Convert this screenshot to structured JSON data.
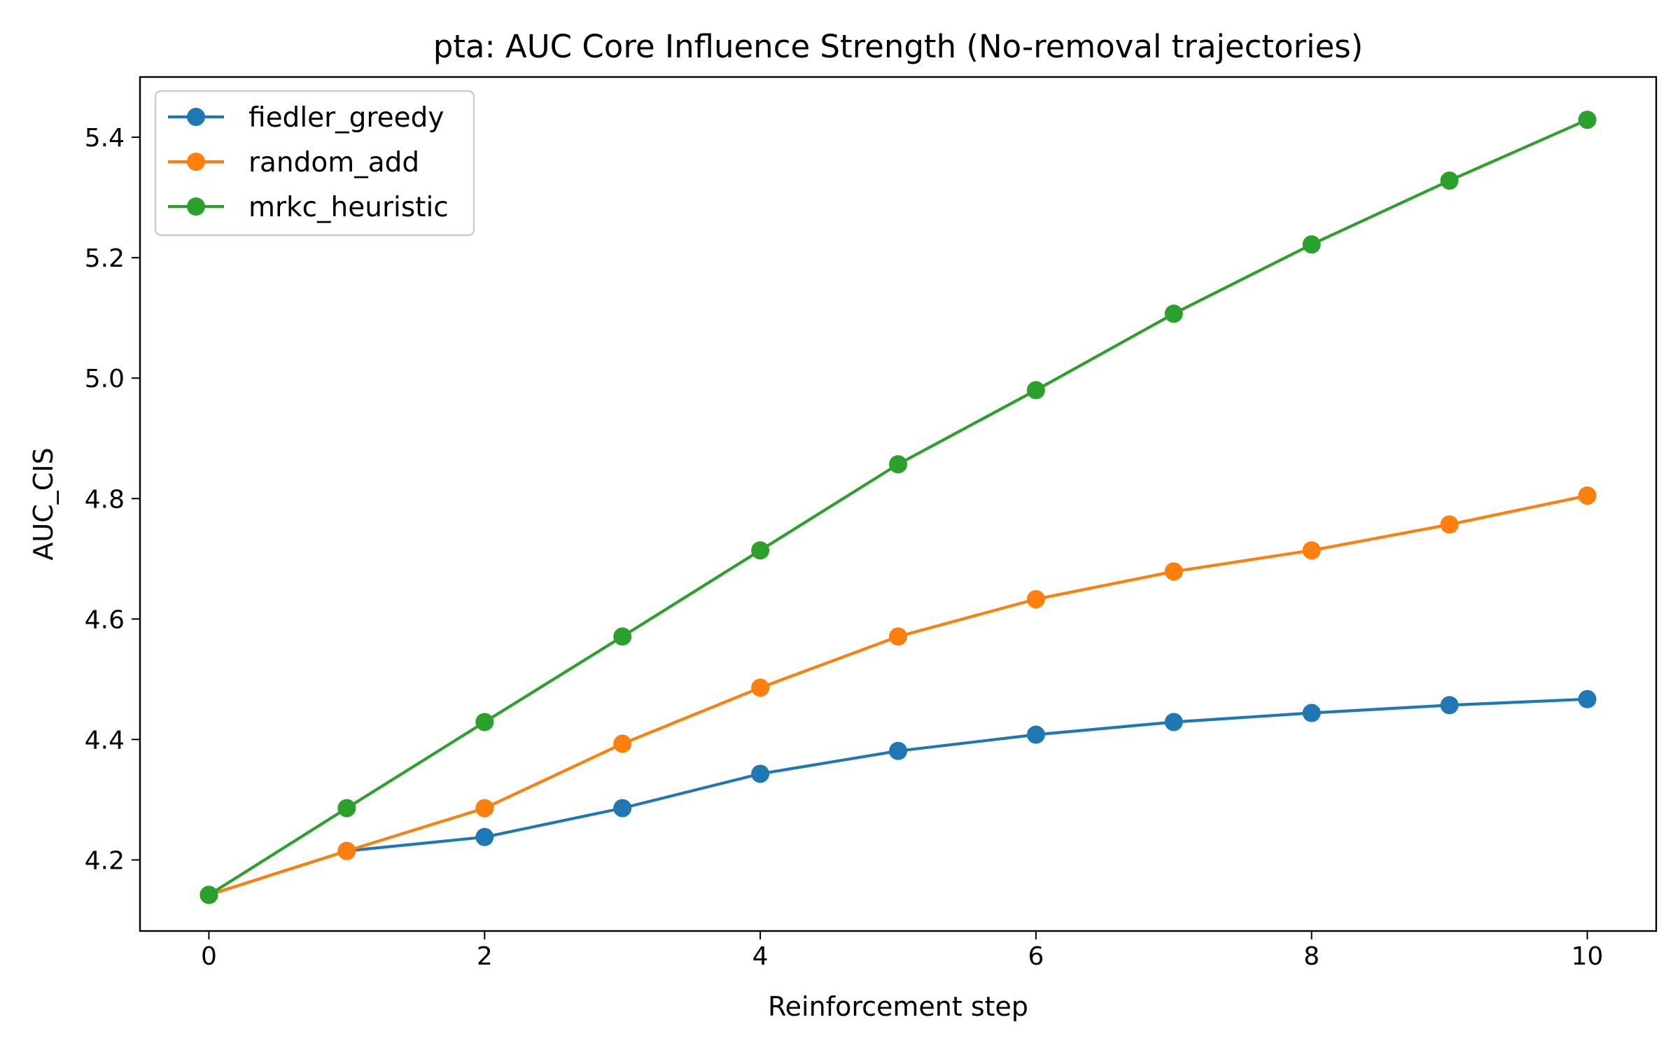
{
  "chart_data": {
    "type": "line",
    "title": "pta: AUC Core Influence Strength (No-removal trajectories)",
    "xlabel": "Reinforcement step",
    "ylabel": "AUC_CIS",
    "xlim": [
      -0.5,
      10.5
    ],
    "ylim": [
      4.082,
      5.5
    ],
    "xticks": [
      0,
      2,
      4,
      6,
      8,
      10
    ],
    "xtick_labels": [
      "0",
      "2",
      "4",
      "6",
      "8",
      "10"
    ],
    "yticks": [
      4.2,
      4.4,
      4.6,
      4.8,
      5.0,
      5.2,
      5.4
    ],
    "ytick_labels": [
      "4.2",
      "4.4",
      "4.6",
      "4.8",
      "5.0",
      "5.2",
      "5.4"
    ],
    "grid": false,
    "legend_position": "top-left",
    "x": [
      0,
      1,
      2,
      3,
      4,
      5,
      6,
      7,
      8,
      9,
      10
    ],
    "series": [
      {
        "name": "fiedler_greedy",
        "color": "#1f77b4",
        "values": [
          4.142,
          4.215,
          4.238,
          4.286,
          4.343,
          4.381,
          4.408,
          4.429,
          4.444,
          4.457,
          4.467
        ]
      },
      {
        "name": "random_add",
        "color": "#ff7f0e",
        "values": [
          4.142,
          4.215,
          4.286,
          4.393,
          4.486,
          4.571,
          4.633,
          4.679,
          4.714,
          4.757,
          4.805
        ]
      },
      {
        "name": "mrkc_heuristic",
        "color": "#2ca02c",
        "values": [
          4.142,
          4.286,
          4.429,
          4.571,
          4.714,
          4.857,
          4.98,
          5.107,
          5.222,
          5.328,
          5.429
        ]
      }
    ]
  }
}
